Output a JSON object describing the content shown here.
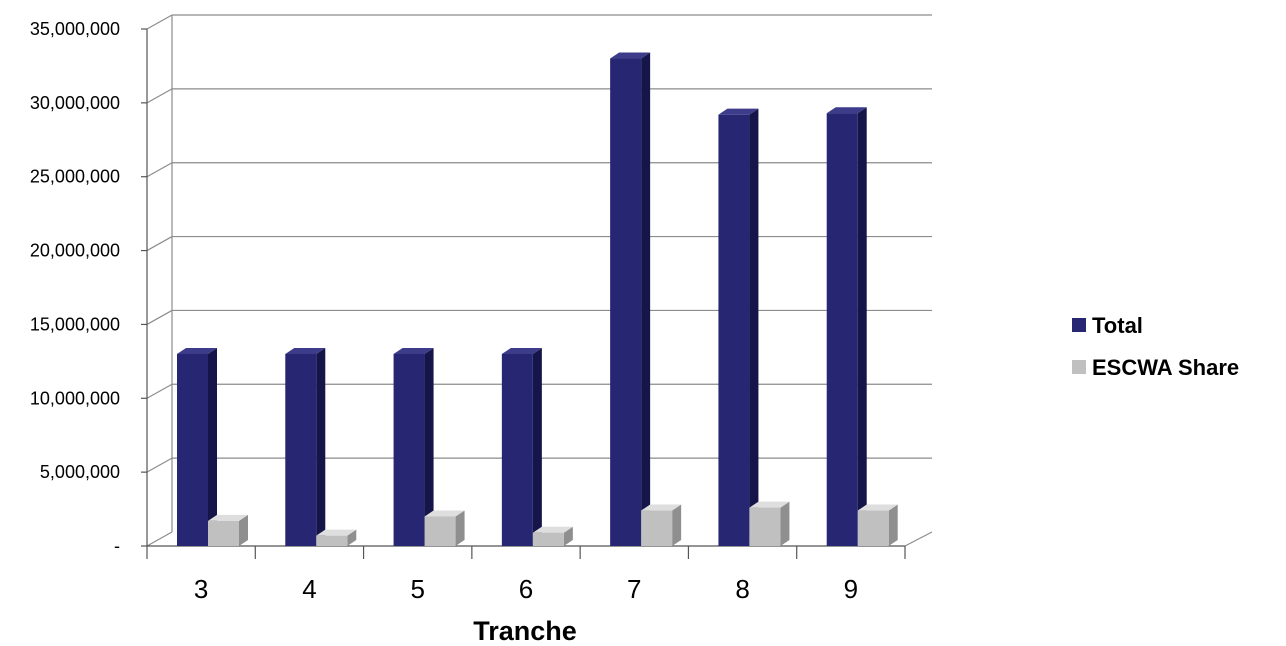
{
  "chart_data": {
    "type": "bar",
    "style": "3d-clustered-column",
    "categories": [
      "3",
      "4",
      "5",
      "6",
      "7",
      "8",
      "9"
    ],
    "series": [
      {
        "name": "Total",
        "values": [
          13000000,
          13000000,
          13000000,
          13000000,
          33000000,
          29200000,
          29300000
        ],
        "color": "#262673"
      },
      {
        "name": "ESCWA Share",
        "values": [
          1700000,
          700000,
          2000000,
          900000,
          2400000,
          2600000,
          2400000
        ],
        "color": "#c0c0c0"
      }
    ],
    "xlabel": "Tranche",
    "ylabel": "",
    "ylim": [
      0,
      35000000
    ],
    "yticks": [
      {
        "value": 0,
        "label": "-"
      },
      {
        "value": 5000000,
        "label": "5,000,000"
      },
      {
        "value": 10000000,
        "label": "10,000,000"
      },
      {
        "value": 15000000,
        "label": "15,000,000"
      },
      {
        "value": 20000000,
        "label": "20,000,000"
      },
      {
        "value": 25000000,
        "label": "25,000,000"
      },
      {
        "value": 30000000,
        "label": "30,000,000"
      },
      {
        "value": 35000000,
        "label": "35,000,000"
      }
    ],
    "grid": true,
    "legend_position": "right"
  }
}
